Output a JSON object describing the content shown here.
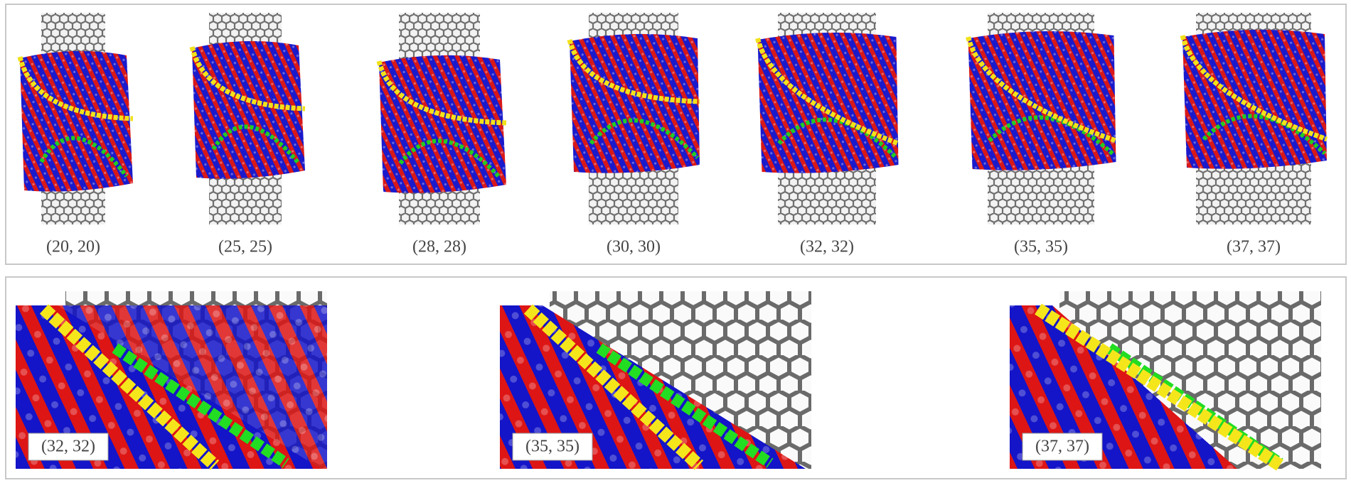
{
  "top_row": {
    "labels": [
      "(20, 20)",
      "(25, 25)",
      "(28, 28)",
      "(30, 30)",
      "(32, 32)",
      "(35, 35)",
      "(37, 37)"
    ]
  },
  "bottom_row": {
    "labels": [
      "(32, 32)",
      "(35, 35)",
      "(37, 37)"
    ]
  }
}
